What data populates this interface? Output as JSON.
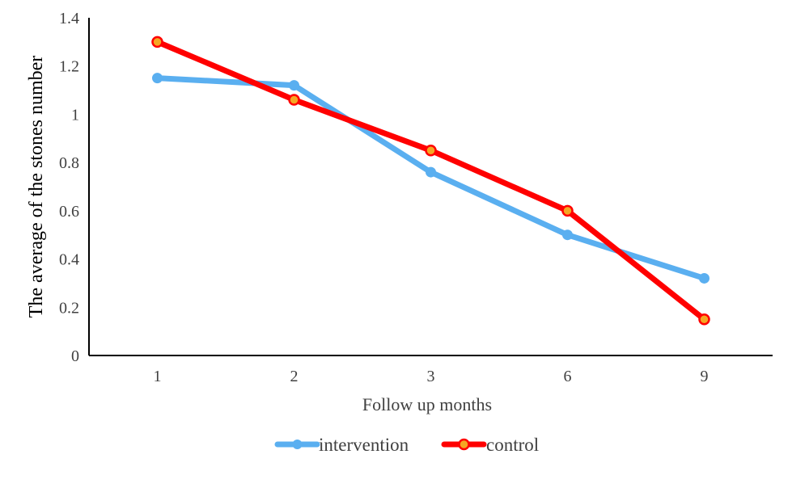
{
  "chart_data": {
    "type": "line",
    "title": "",
    "xlabel": "Follow up  months",
    "ylabel": "The average of the stones number",
    "categories": [
      "1",
      "2",
      "3",
      "6",
      "9"
    ],
    "ylim": [
      0,
      1.4
    ],
    "yticks": [
      "0",
      "0.2",
      "0.4",
      "0.6",
      "0.8",
      "1",
      "1.2",
      "1.4"
    ],
    "grid": false,
    "legend_position": "bottom",
    "series": [
      {
        "name": "intervention",
        "values": [
          1.15,
          1.12,
          0.76,
          0.5,
          0.32
        ],
        "color": "#5aaff0",
        "marker": "circle"
      },
      {
        "name": "control",
        "values": [
          1.3,
          1.06,
          0.85,
          0.6,
          0.15
        ],
        "color": "#ff0000",
        "marker": "circle-orange"
      }
    ]
  }
}
